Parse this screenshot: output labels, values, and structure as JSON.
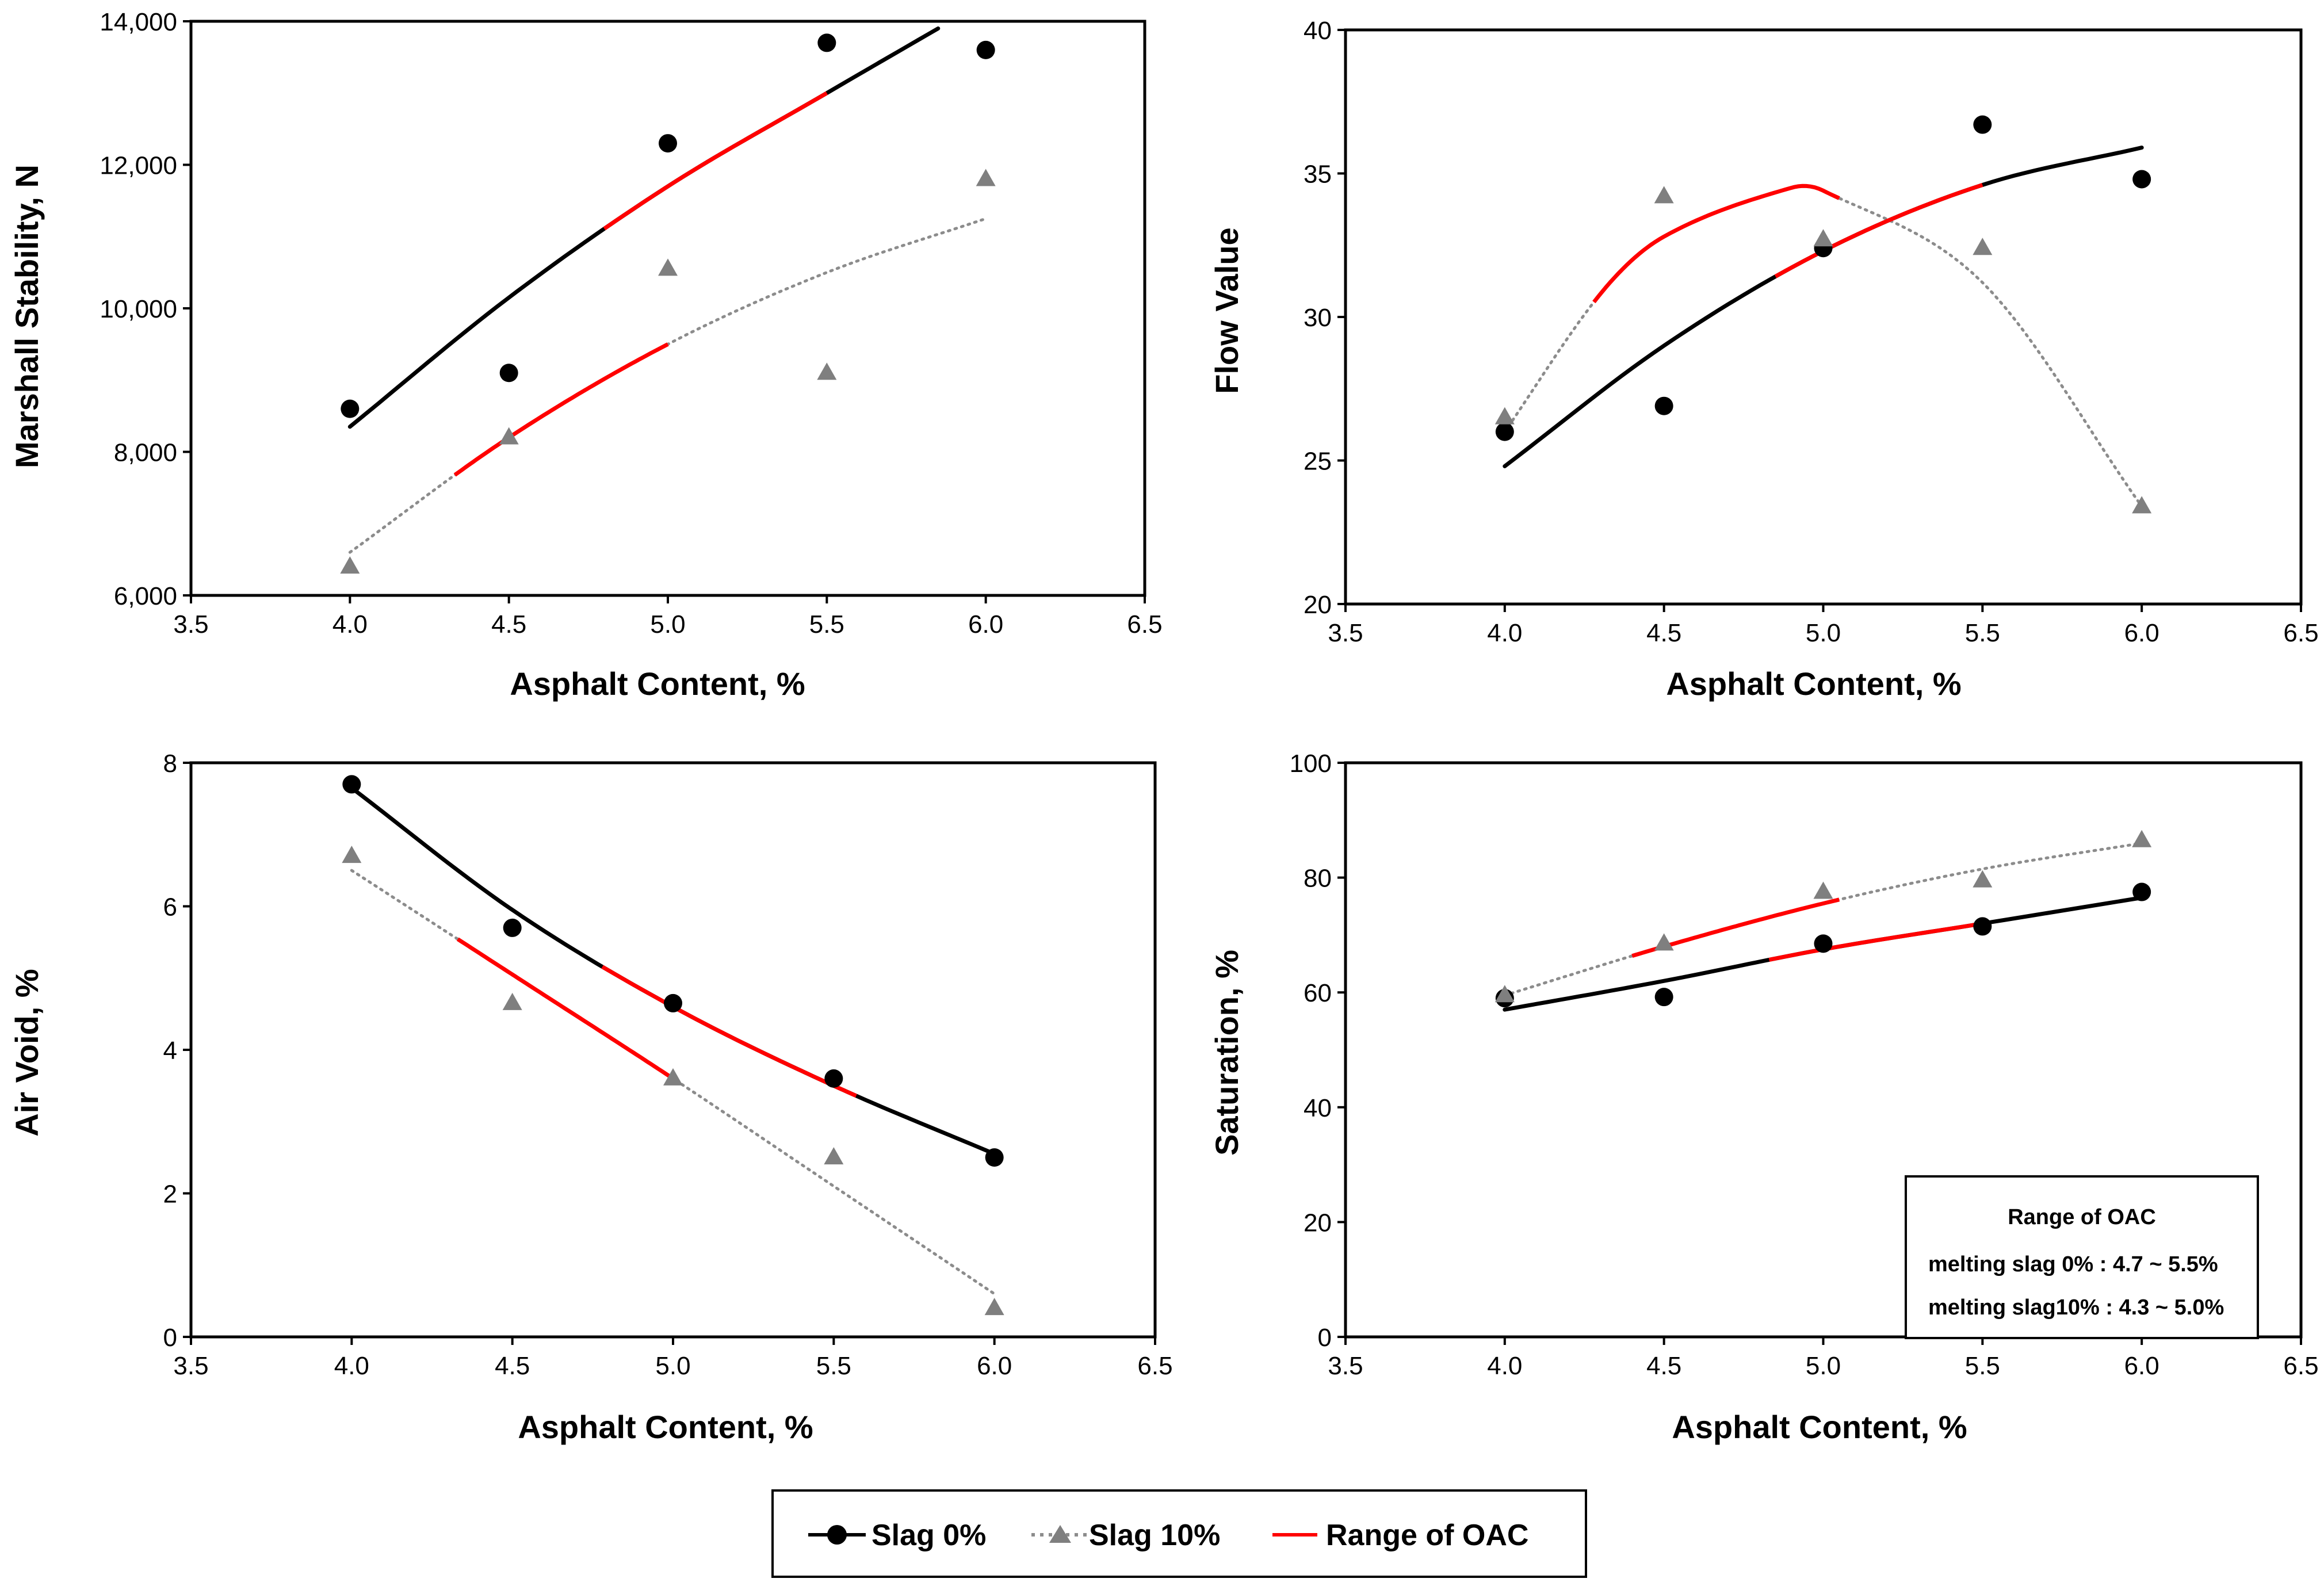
{
  "chart_data": [
    {
      "type": "scatter",
      "id": "stability",
      "ylabel": "Marshall Stability, N",
      "xlabel": "Asphalt Content, %",
      "xlim": [
        3.5,
        6.5
      ],
      "ylim": [
        6000,
        14000
      ],
      "xticks": [
        3.5,
        4.0,
        4.5,
        5.0,
        5.5,
        6.0,
        6.5
      ],
      "xtick_labels": [
        "3.5",
        "4.0",
        "4.5",
        "5.0",
        "5.5",
        "6.0",
        "6.5"
      ],
      "yticks": [
        6000,
        8000,
        10000,
        12000,
        14000
      ],
      "ytick_labels": [
        "6,000",
        "8,000",
        "10,000",
        "12,000",
        "14,000"
      ],
      "series": [
        {
          "name": "Slag 0%",
          "marker": "circle",
          "x": [
            4.0,
            4.5,
            5.0,
            5.5,
            6.0
          ],
          "y": [
            8600,
            9100,
            12300,
            13700,
            13600
          ]
        },
        {
          "name": "Slag 10%",
          "marker": "triangle",
          "x": [
            4.0,
            4.5,
            5.0,
            5.5,
            6.0
          ],
          "y": [
            6400,
            8200,
            10550,
            9100,
            11800
          ]
        }
      ],
      "fits": [
        {
          "series": "Slag 0%",
          "style": "solid",
          "x_range": [
            4.0,
            5.85
          ],
          "x": [
            4.0,
            4.5,
            5.0,
            5.5,
            5.85
          ],
          "y": [
            8350,
            10150,
            11700,
            13000,
            13900
          ]
        },
        {
          "series": "Slag 10%",
          "style": "dotted",
          "x_range": [
            4.0,
            6.0
          ],
          "x": [
            4.0,
            4.5,
            5.0,
            5.5,
            6.0
          ],
          "y": [
            6600,
            8200,
            9500,
            10500,
            11250
          ]
        }
      ],
      "oac_ranges": [
        {
          "series": "Slag 0%",
          "from": 4.8,
          "to": 5.5
        },
        {
          "series": "Slag 10%",
          "from": 4.33,
          "to": 5.0
        }
      ]
    },
    {
      "type": "scatter",
      "id": "flow",
      "ylabel": "Flow Value",
      "xlabel": "Asphalt Content, %",
      "xlim": [
        3.5,
        6.5
      ],
      "ylim": [
        20,
        40
      ],
      "xticks": [
        3.5,
        4.0,
        4.5,
        5.0,
        5.5,
        6.0,
        6.5
      ],
      "xtick_labels": [
        "3.5",
        "4.0",
        "4.5",
        "5.0",
        "5.5",
        "6.0",
        "6.5"
      ],
      "yticks": [
        20,
        25,
        30,
        35,
        40
      ],
      "ytick_labels": [
        "20",
        "25",
        "30",
        "35",
        "40"
      ],
      "series": [
        {
          "name": "Slag 0%",
          "marker": "circle",
          "x": [
            4.0,
            4.5,
            5.0,
            5.5,
            6.0
          ],
          "y": [
            26.0,
            26.9,
            32.4,
            36.7,
            34.8
          ]
        },
        {
          "name": "Slag 10%",
          "marker": "triangle",
          "x": [
            4.0,
            4.5,
            5.0,
            5.5,
            6.0
          ],
          "y": [
            26.5,
            34.2,
            32.7,
            32.4,
            23.4
          ]
        }
      ],
      "fits": [
        {
          "series": "Slag 0%",
          "style": "solid",
          "x_range": [
            4.0,
            6.0
          ],
          "x": [
            4.0,
            4.5,
            5.0,
            5.5,
            6.0
          ],
          "y": [
            24.8,
            29.0,
            32.3,
            34.6,
            35.9
          ]
        },
        {
          "series": "Slag 10%",
          "style": "dotted",
          "x_range": [
            4.0,
            6.0
          ],
          "x": [
            4.0,
            4.3,
            4.5,
            4.9,
            5.0,
            5.5,
            6.0
          ],
          "y": [
            26.0,
            30.8,
            32.8,
            34.5,
            34.4,
            31.2,
            23.4
          ]
        }
      ],
      "oac_ranges": [
        {
          "series": "Slag 0%",
          "from": 4.85,
          "to": 5.5
        },
        {
          "series": "Slag 10%",
          "from": 4.28,
          "to": 5.05
        }
      ]
    },
    {
      "type": "scatter",
      "id": "airvoid",
      "ylabel": "Air Void, %",
      "xlabel": "Asphalt Content, %",
      "xlim": [
        3.5,
        6.5
      ],
      "ylim": [
        0,
        8
      ],
      "xticks": [
        3.5,
        4.0,
        4.5,
        5.0,
        5.5,
        6.0,
        6.5
      ],
      "xtick_labels": [
        "3.5",
        "4.0",
        "4.5",
        "5.0",
        "5.5",
        "6.0",
        "6.5"
      ],
      "yticks": [
        0,
        2,
        4,
        6,
        8
      ],
      "ytick_labels": [
        "0",
        "2",
        "4",
        "6",
        "8"
      ],
      "series": [
        {
          "name": "Slag 0%",
          "marker": "circle",
          "x": [
            4.0,
            4.5,
            5.0,
            5.5,
            6.0
          ],
          "y": [
            7.7,
            5.7,
            4.65,
            3.6,
            2.5
          ]
        },
        {
          "name": "Slag 10%",
          "marker": "triangle",
          "x": [
            4.0,
            4.5,
            5.0,
            5.5,
            6.0
          ],
          "y": [
            6.7,
            4.65,
            3.6,
            2.5,
            0.4
          ]
        }
      ],
      "fits": [
        {
          "series": "Slag 0%",
          "style": "solid",
          "x_range": [
            4.0,
            6.0
          ],
          "x": [
            4.0,
            4.5,
            5.0,
            5.5,
            6.0
          ],
          "y": [
            7.65,
            5.95,
            4.6,
            3.5,
            2.55
          ]
        },
        {
          "series": "Slag 10%",
          "style": "dotted",
          "x_range": [
            4.0,
            6.0
          ],
          "x": [
            4.0,
            4.5,
            5.0,
            5.5,
            6.0
          ],
          "y": [
            6.5,
            5.05,
            3.6,
            2.1,
            0.6
          ]
        }
      ],
      "oac_ranges": [
        {
          "series": "Slag 0%",
          "from": 4.78,
          "to": 5.57
        },
        {
          "series": "Slag 10%",
          "from": 4.33,
          "to": 5.0
        }
      ]
    },
    {
      "type": "scatter",
      "id": "saturation",
      "ylabel": "Saturation, %",
      "xlabel": "Asphalt Content, %",
      "xlim": [
        3.5,
        6.5
      ],
      "ylim": [
        0,
        100
      ],
      "xticks": [
        3.5,
        4.0,
        4.5,
        5.0,
        5.5,
        6.0,
        6.5
      ],
      "xtick_labels": [
        "3.5",
        "4.0",
        "4.5",
        "5.0",
        "5.5",
        "6.0",
        "6.5"
      ],
      "yticks": [
        0,
        20,
        40,
        60,
        80,
        100
      ],
      "ytick_labels": [
        "0",
        "20",
        "40",
        "60",
        "80",
        "100"
      ],
      "series": [
        {
          "name": "Slag 0%",
          "marker": "circle",
          "x": [
            4.0,
            4.5,
            5.0,
            5.5,
            6.0
          ],
          "y": [
            59.0,
            59.2,
            68.5,
            71.5,
            77.5
          ]
        },
        {
          "name": "Slag 10%",
          "marker": "triangle",
          "x": [
            4.0,
            4.5,
            5.0,
            5.5,
            6.0
          ],
          "y": [
            59.5,
            68.5,
            77.5,
            79.5,
            86.5
          ]
        }
      ],
      "fits": [
        {
          "series": "Slag 0%",
          "style": "solid",
          "x_range": [
            4.0,
            6.0
          ],
          "x": [
            4.0,
            4.5,
            5.0,
            5.5,
            6.0
          ],
          "y": [
            57.0,
            62.0,
            67.5,
            72.0,
            76.5
          ]
        },
        {
          "series": "Slag 10%",
          "style": "dotted",
          "x_range": [
            4.0,
            6.0
          ],
          "x": [
            4.0,
            4.5,
            5.0,
            5.5,
            6.0
          ],
          "y": [
            59.5,
            68.0,
            75.5,
            81.5,
            86.0
          ]
        }
      ],
      "oac_ranges": [
        {
          "series": "Slag 0%",
          "from": 4.83,
          "to": 5.5
        },
        {
          "series": "Slag 10%",
          "from": 4.4,
          "to": 5.05
        }
      ],
      "inset": {
        "title": "Range of OAC",
        "lines": [
          "melting slag 0% : 4.7 ~ 5.5%",
          "melting slag10% : 4.3 ~ 5.0%"
        ]
      }
    }
  ],
  "legend": {
    "items": [
      {
        "label": "Slag 0%",
        "marker": "circle"
      },
      {
        "label": "Slag 10%",
        "marker": "triangle"
      },
      {
        "label": "Range of OAC",
        "marker": "line"
      }
    ]
  },
  "colors": {
    "slag0": "#000000",
    "slag10_marker": "#7f7f7f",
    "slag10_line": "#8c8c8c",
    "oac": "#ff0000",
    "axis": "#000000"
  }
}
